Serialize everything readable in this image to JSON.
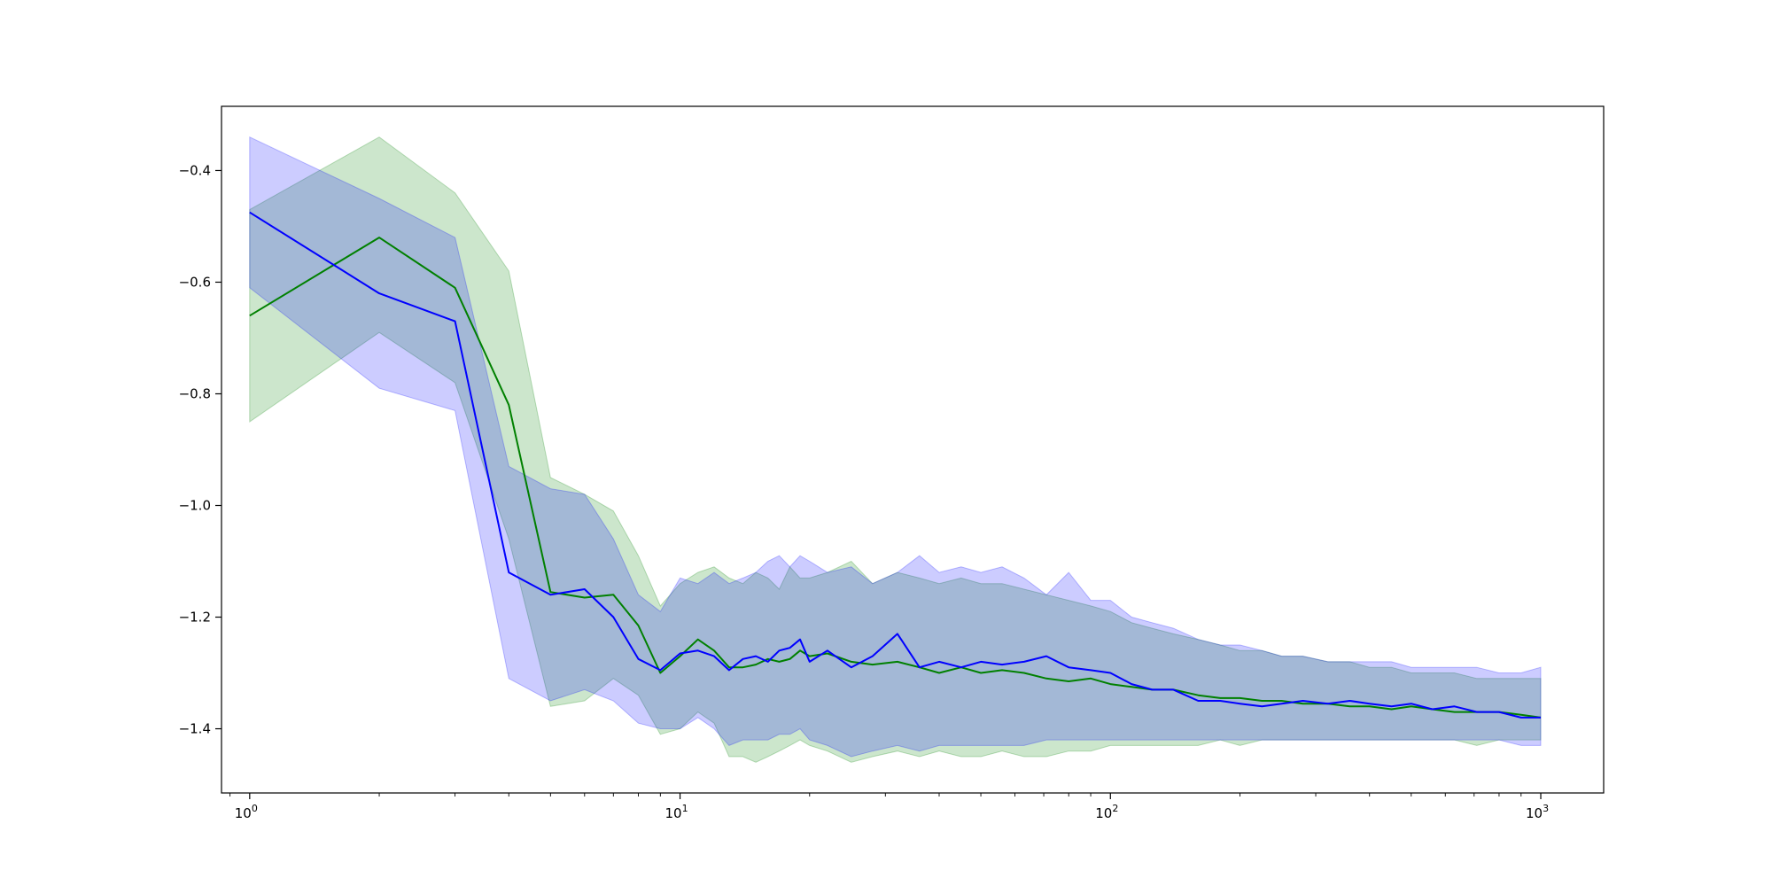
{
  "chart_data": {
    "type": "line",
    "title": "",
    "xlabel": "",
    "ylabel": "",
    "xscale": "log",
    "xlim": [
      0.86,
      1400
    ],
    "ylim": [
      -1.515,
      -0.285
    ],
    "grid": false,
    "legend": "none",
    "x_ticks": [
      {
        "value": 1,
        "base": "10",
        "exp": "0"
      },
      {
        "value": 10,
        "base": "10",
        "exp": "1"
      },
      {
        "value": 100,
        "base": "10",
        "exp": "2"
      },
      {
        "value": 1000,
        "base": "10",
        "exp": "3"
      }
    ],
    "y_ticks": [
      {
        "value": -1.4,
        "label": "−1.4"
      },
      {
        "value": -1.2,
        "label": "−1.2"
      },
      {
        "value": -1.0,
        "label": "−1.0"
      },
      {
        "value": -0.8,
        "label": "−0.8"
      },
      {
        "value": -0.6,
        "label": "−0.6"
      },
      {
        "value": -0.4,
        "label": "−0.4"
      }
    ],
    "series": [
      {
        "color": "#008000",
        "band_color": "#008000",
        "band_opacity": 0.2,
        "x": [
          1,
          2,
          3,
          4,
          5,
          6,
          7,
          8,
          9,
          10,
          11,
          12,
          13,
          14,
          15,
          16,
          17,
          18,
          19,
          20,
          22,
          25,
          28,
          32,
          36,
          40,
          45,
          50,
          56,
          63,
          71,
          80,
          90,
          100,
          112,
          125,
          140,
          160,
          180,
          200,
          225,
          250,
          280,
          320,
          360,
          400,
          450,
          500,
          560,
          630,
          710,
          800,
          900,
          1000
        ],
        "mean": [
          -0.66,
          -0.52,
          -0.61,
          -0.82,
          -1.155,
          -1.165,
          -1.16,
          -1.215,
          -1.3,
          -1.27,
          -1.24,
          -1.26,
          -1.29,
          -1.29,
          -1.285,
          -1.275,
          -1.28,
          -1.275,
          -1.26,
          -1.27,
          -1.265,
          -1.28,
          -1.285,
          -1.28,
          -1.29,
          -1.3,
          -1.29,
          -1.3,
          -1.295,
          -1.3,
          -1.31,
          -1.315,
          -1.31,
          -1.32,
          -1.325,
          -1.33,
          -1.33,
          -1.34,
          -1.345,
          -1.345,
          -1.35,
          -1.35,
          -1.355,
          -1.355,
          -1.36,
          -1.36,
          -1.365,
          -1.36,
          -1.365,
          -1.37,
          -1.37,
          -1.37,
          -1.375,
          -1.38
        ],
        "upper": [
          -0.47,
          -0.34,
          -0.44,
          -0.58,
          -0.95,
          -0.98,
          -1.01,
          -1.09,
          -1.18,
          -1.14,
          -1.12,
          -1.11,
          -1.13,
          -1.14,
          -1.12,
          -1.13,
          -1.15,
          -1.11,
          -1.13,
          -1.13,
          -1.12,
          -1.1,
          -1.14,
          -1.12,
          -1.13,
          -1.14,
          -1.13,
          -1.14,
          -1.14,
          -1.15,
          -1.16,
          -1.17,
          -1.18,
          -1.19,
          -1.21,
          -1.22,
          -1.23,
          -1.24,
          -1.25,
          -1.26,
          -1.26,
          -1.27,
          -1.27,
          -1.28,
          -1.28,
          -1.29,
          -1.29,
          -1.3,
          -1.3,
          -1.3,
          -1.31,
          -1.31,
          -1.31,
          -1.31
        ],
        "lower": [
          -0.85,
          -0.69,
          -0.78,
          -1.06,
          -1.36,
          -1.35,
          -1.31,
          -1.34,
          -1.41,
          -1.4,
          -1.37,
          -1.39,
          -1.45,
          -1.45,
          -1.46,
          -1.45,
          -1.44,
          -1.43,
          -1.42,
          -1.43,
          -1.44,
          -1.46,
          -1.45,
          -1.44,
          -1.45,
          -1.44,
          -1.45,
          -1.45,
          -1.44,
          -1.45,
          -1.45,
          -1.44,
          -1.44,
          -1.43,
          -1.43,
          -1.43,
          -1.43,
          -1.43,
          -1.42,
          -1.43,
          -1.42,
          -1.42,
          -1.42,
          -1.42,
          -1.42,
          -1.42,
          -1.42,
          -1.42,
          -1.42,
          -1.42,
          -1.43,
          -1.42,
          -1.42,
          -1.42
        ]
      },
      {
        "color": "#0000ff",
        "band_color": "#0000ff",
        "band_opacity": 0.2,
        "x": [
          1,
          2,
          3,
          4,
          5,
          6,
          7,
          8,
          9,
          10,
          11,
          12,
          13,
          14,
          15,
          16,
          17,
          18,
          19,
          20,
          22,
          25,
          28,
          32,
          36,
          40,
          45,
          50,
          56,
          63,
          71,
          80,
          90,
          100,
          112,
          125,
          140,
          160,
          180,
          200,
          225,
          250,
          280,
          320,
          360,
          400,
          450,
          500,
          560,
          630,
          710,
          800,
          900,
          1000
        ],
        "mean": [
          -0.475,
          -0.62,
          -0.67,
          -1.12,
          -1.16,
          -1.15,
          -1.2,
          -1.275,
          -1.295,
          -1.265,
          -1.26,
          -1.27,
          -1.295,
          -1.275,
          -1.27,
          -1.28,
          -1.26,
          -1.255,
          -1.24,
          -1.28,
          -1.26,
          -1.29,
          -1.27,
          -1.23,
          -1.29,
          -1.28,
          -1.29,
          -1.28,
          -1.285,
          -1.28,
          -1.27,
          -1.29,
          -1.295,
          -1.3,
          -1.32,
          -1.33,
          -1.33,
          -1.35,
          -1.35,
          -1.355,
          -1.36,
          -1.355,
          -1.35,
          -1.355,
          -1.35,
          -1.355,
          -1.36,
          -1.355,
          -1.365,
          -1.36,
          -1.37,
          -1.37,
          -1.38,
          -1.38
        ],
        "upper": [
          -0.34,
          -0.45,
          -0.52,
          -0.93,
          -0.97,
          -0.98,
          -1.06,
          -1.16,
          -1.19,
          -1.13,
          -1.14,
          -1.12,
          -1.14,
          -1.13,
          -1.12,
          -1.1,
          -1.09,
          -1.11,
          -1.09,
          -1.1,
          -1.12,
          -1.11,
          -1.14,
          -1.12,
          -1.09,
          -1.12,
          -1.11,
          -1.12,
          -1.11,
          -1.13,
          -1.16,
          -1.12,
          -1.17,
          -1.17,
          -1.2,
          -1.21,
          -1.22,
          -1.24,
          -1.25,
          -1.25,
          -1.26,
          -1.27,
          -1.27,
          -1.28,
          -1.28,
          -1.28,
          -1.28,
          -1.29,
          -1.29,
          -1.29,
          -1.29,
          -1.3,
          -1.3,
          -1.29
        ],
        "lower": [
          -0.61,
          -0.79,
          -0.83,
          -1.31,
          -1.35,
          -1.33,
          -1.35,
          -1.39,
          -1.4,
          -1.4,
          -1.38,
          -1.4,
          -1.43,
          -1.42,
          -1.42,
          -1.42,
          -1.41,
          -1.41,
          -1.4,
          -1.42,
          -1.43,
          -1.45,
          -1.44,
          -1.43,
          -1.44,
          -1.43,
          -1.43,
          -1.43,
          -1.43,
          -1.43,
          -1.42,
          -1.42,
          -1.42,
          -1.42,
          -1.42,
          -1.42,
          -1.42,
          -1.42,
          -1.42,
          -1.42,
          -1.42,
          -1.42,
          -1.42,
          -1.42,
          -1.42,
          -1.42,
          -1.42,
          -1.42,
          -1.42,
          -1.42,
          -1.42,
          -1.42,
          -1.43,
          -1.43
        ]
      }
    ]
  }
}
